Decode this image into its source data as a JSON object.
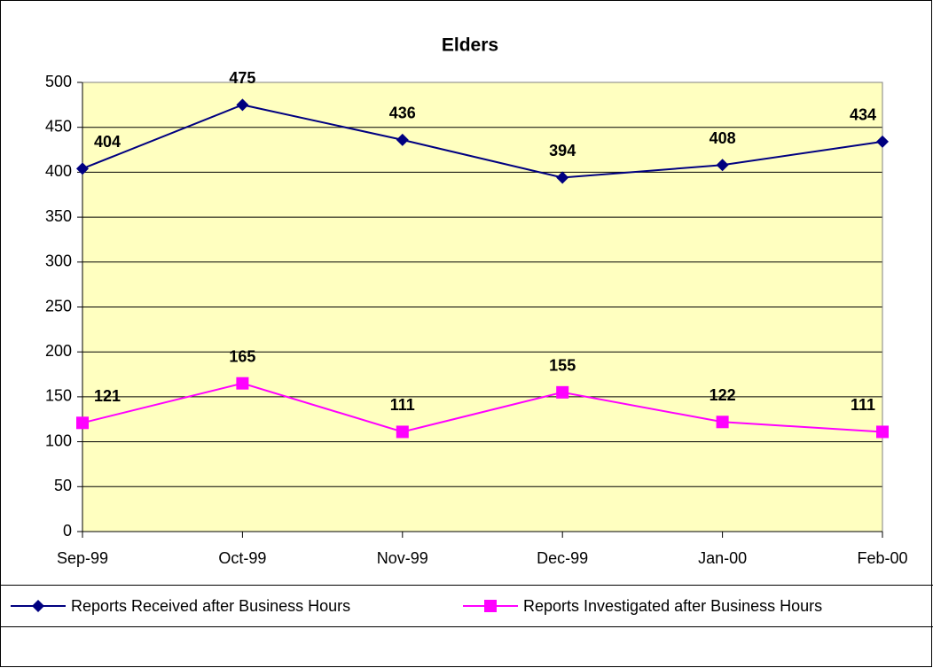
{
  "chart_data": {
    "type": "line",
    "title": "Elders",
    "categories": [
      "Sep-99",
      "Oct-99",
      "Nov-99",
      "Dec-99",
      "Jan-00",
      "Feb-00"
    ],
    "series": [
      {
        "name": "Reports Received after Business Hours",
        "color": "#000080",
        "marker": "diamond",
        "values": [
          404,
          475,
          436,
          394,
          408,
          434
        ]
      },
      {
        "name": "Reports Investigated after Business Hours",
        "color": "#ff00ff",
        "marker": "square",
        "values": [
          121,
          165,
          111,
          155,
          122,
          111
        ]
      }
    ],
    "ylim": [
      0,
      500
    ],
    "yticks": [
      0,
      50,
      100,
      150,
      200,
      250,
      300,
      350,
      400,
      450,
      500
    ],
    "grid": true,
    "legend": "bottom",
    "plot_background": "#ffffc0"
  }
}
